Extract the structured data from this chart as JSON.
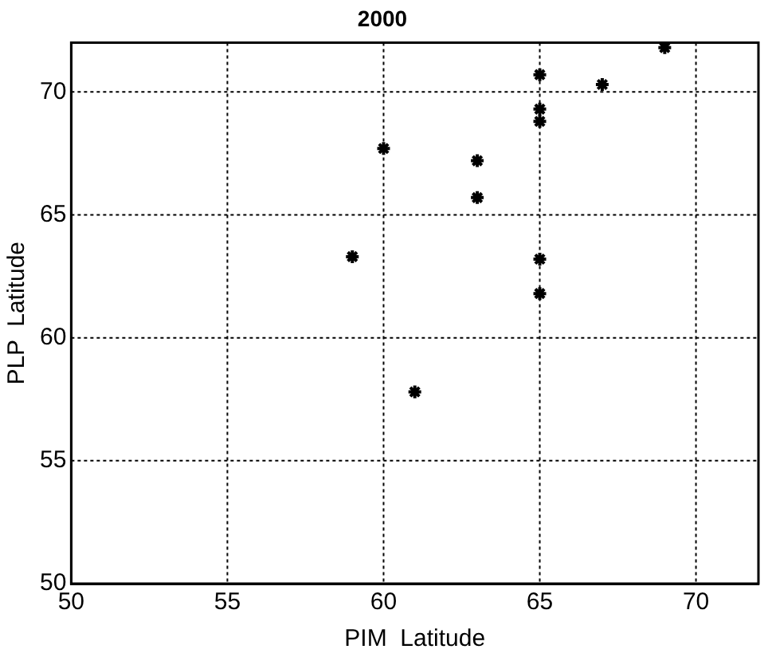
{
  "chart_data": {
    "type": "scatter",
    "title": "2000",
    "xlabel": "PIM  Latitude",
    "ylabel": "PLP  Latitude",
    "x": [
      60,
      63,
      63,
      59,
      65,
      65,
      65,
      67,
      69,
      65,
      65,
      61
    ],
    "values": [
      67.7,
      67.2,
      65.7,
      63.3,
      70.7,
      69.3,
      68.8,
      70.3,
      71.8,
      63.2,
      61.8,
      57.8
    ],
    "color": "#000000",
    "marker": "cross",
    "xlim": [
      50,
      72
    ],
    "xticks": [
      50,
      55,
      60,
      65,
      70
    ],
    "ylim": [
      50,
      72
    ],
    "yticks": [
      50,
      55,
      60,
      65,
      70
    ],
    "grid": true,
    "legend": false
  }
}
